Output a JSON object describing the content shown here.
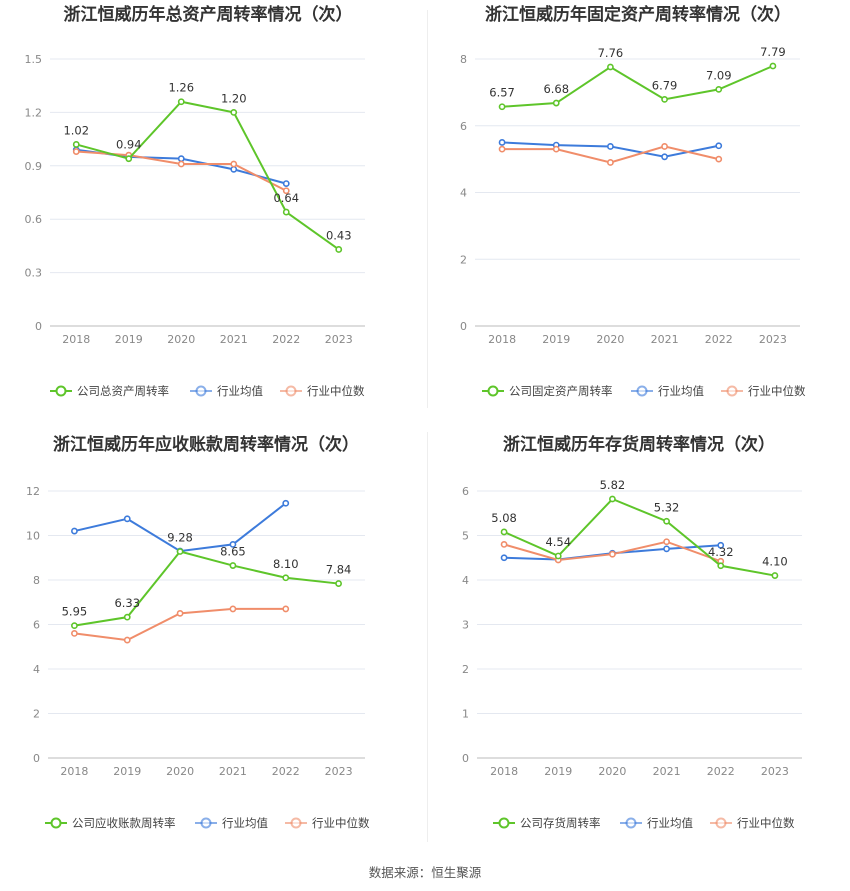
{
  "source_label": "数据来源：恒生聚源",
  "colors": {
    "company": "#5ec52a",
    "avg": "#3d7bdb",
    "median": "#f08d6a",
    "grid": "#e4e8f0",
    "axis": "#bbbbbb"
  },
  "chart_data": [
    {
      "type": "line",
      "title": "浙江恒威历年总资产周转率情况（次）",
      "categories": [
        "2018",
        "2019",
        "2020",
        "2021",
        "2022",
        "2023"
      ],
      "yticks": [
        "0",
        "0.3",
        "0.6",
        "0.9",
        "1.2",
        "1.5"
      ],
      "ylim": [
        0,
        1.5
      ],
      "legend_position": "bottom",
      "series": [
        {
          "name": "公司总资产周转率",
          "key": "company",
          "values": [
            1.02,
            0.94,
            1.26,
            1.2,
            0.64,
            0.43
          ],
          "labels": [
            "1.02",
            "0.94",
            "1.26",
            "1.20",
            "0.64",
            "0.43"
          ]
        },
        {
          "name": "行业均值",
          "key": "avg",
          "values": [
            0.99,
            0.95,
            0.94,
            0.88,
            0.8,
            null
          ]
        },
        {
          "name": "行业中位数",
          "key": "median",
          "values": [
            0.98,
            0.96,
            0.91,
            0.91,
            0.76,
            null
          ]
        }
      ]
    },
    {
      "type": "line",
      "title": "浙江恒威历年固定资产周转率情况（次）",
      "categories": [
        "2018",
        "2019",
        "2020",
        "2021",
        "2022",
        "2023"
      ],
      "yticks": [
        "0",
        "2",
        "4",
        "6",
        "8"
      ],
      "ylim": [
        0,
        8
      ],
      "legend_position": "bottom",
      "series": [
        {
          "name": "公司固定资产周转率",
          "key": "company",
          "values": [
            6.57,
            6.68,
            7.76,
            6.79,
            7.09,
            7.79
          ],
          "labels": [
            "6.57",
            "6.68",
            "7.76",
            "6.79",
            "7.09",
            "7.79"
          ]
        },
        {
          "name": "行业均值",
          "key": "avg",
          "values": [
            5.5,
            5.42,
            5.38,
            5.07,
            5.4,
            null
          ]
        },
        {
          "name": "行业中位数",
          "key": "median",
          "values": [
            5.3,
            5.3,
            4.9,
            5.38,
            5.0,
            null
          ]
        }
      ]
    },
    {
      "type": "line",
      "title": "浙江恒威历年应收账款周转率情况（次）",
      "categories": [
        "2018",
        "2019",
        "2020",
        "2021",
        "2022",
        "2023"
      ],
      "yticks": [
        "0",
        "2",
        "4",
        "6",
        "8",
        "10",
        "12"
      ],
      "ylim": [
        0,
        12
      ],
      "legend_position": "bottom",
      "series": [
        {
          "name": "公司应收账款周转率",
          "key": "company",
          "values": [
            5.95,
            6.33,
            9.28,
            8.65,
            8.1,
            7.84
          ],
          "labels": [
            "5.95",
            "6.33",
            "9.28",
            "8.65",
            "8.10",
            "7.84"
          ]
        },
        {
          "name": "行业均值",
          "key": "avg",
          "values": [
            10.2,
            10.75,
            9.3,
            9.6,
            11.45,
            null
          ]
        },
        {
          "name": "行业中位数",
          "key": "median",
          "values": [
            5.6,
            5.3,
            6.5,
            6.7,
            6.7,
            null
          ]
        }
      ]
    },
    {
      "type": "line",
      "title": "浙江恒威历年存货周转率情况（次）",
      "categories": [
        "2018",
        "2019",
        "2020",
        "2021",
        "2022",
        "2023"
      ],
      "yticks": [
        "0",
        "1",
        "2",
        "3",
        "4",
        "5",
        "6"
      ],
      "ylim": [
        0,
        6
      ],
      "legend_position": "bottom",
      "series": [
        {
          "name": "公司存货周转率",
          "key": "company",
          "values": [
            5.08,
            4.54,
            5.82,
            5.32,
            4.32,
            4.1
          ],
          "labels": [
            "5.08",
            "4.54",
            "5.82",
            "5.32",
            "4.32",
            "4.10"
          ]
        },
        {
          "name": "行业均值",
          "key": "avg",
          "values": [
            4.5,
            4.46,
            4.6,
            4.7,
            4.78,
            null
          ]
        },
        {
          "name": "行业中位数",
          "key": "median",
          "values": [
            4.8,
            4.45,
            4.58,
            4.86,
            4.42,
            null
          ]
        }
      ]
    }
  ]
}
